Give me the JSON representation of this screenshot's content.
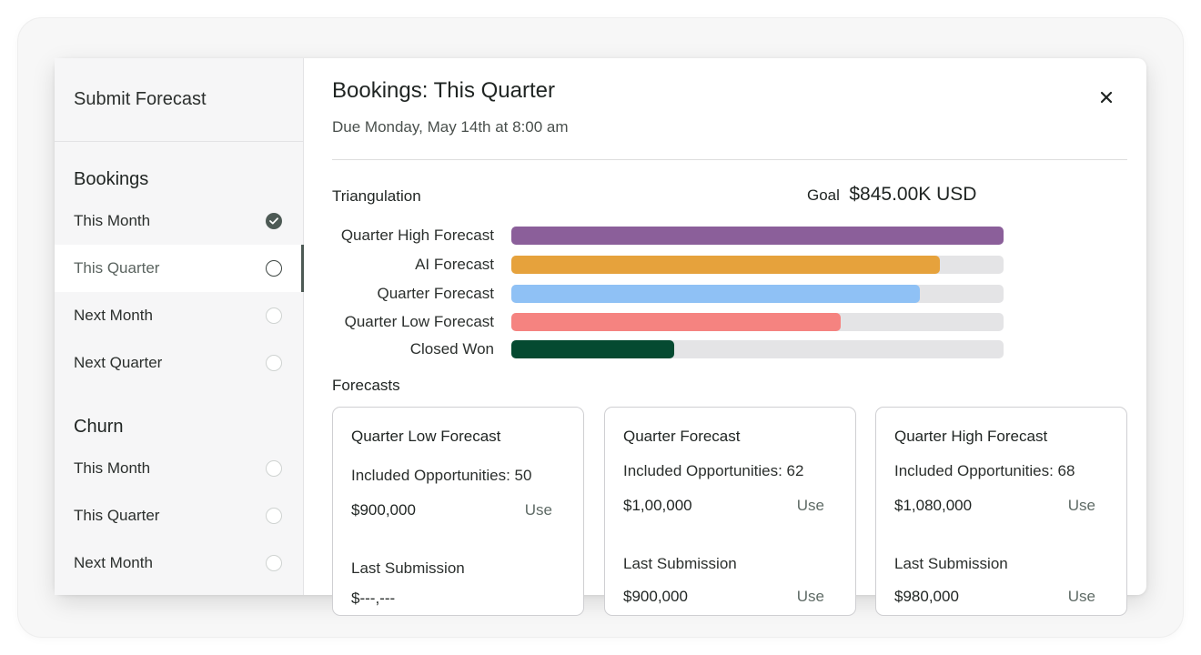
{
  "sidebar": {
    "header": "Submit Forecast",
    "groups": [
      {
        "title": "Bookings",
        "items": [
          {
            "label": "This Month",
            "state": "completed"
          },
          {
            "label": "This Quarter",
            "state": "active"
          },
          {
            "label": "Next Month",
            "state": "pending"
          },
          {
            "label": "Next Quarter",
            "state": "pending"
          }
        ]
      },
      {
        "title": "Churn",
        "items": [
          {
            "label": "This Month",
            "state": "pending"
          },
          {
            "label": "This Quarter",
            "state": "pending"
          },
          {
            "label": "Next Month",
            "state": "pending"
          }
        ]
      }
    ]
  },
  "main": {
    "title": "Bookings: This Quarter",
    "due": "Due Monday, May 14th at 8:00 am",
    "close_icon": "close-icon",
    "triangulation": {
      "label": "Triangulation",
      "goal_label": "Goal",
      "goal_value": "$845.00K USD",
      "bars": [
        {
          "label": "Quarter High Forecast",
          "fraction": 1.0,
          "color": "#8b5f9a"
        },
        {
          "label": "AI Forecast",
          "fraction": 0.87,
          "color": "#e6a23c"
        },
        {
          "label": "Quarter Forecast",
          "fraction": 0.83,
          "color": "#8fc1f5"
        },
        {
          "label": "Quarter Low Forecast",
          "fraction": 0.67,
          "color": "#f58380"
        },
        {
          "label": "Closed Won",
          "fraction": 0.33,
          "color": "#054a31"
        }
      ],
      "track_color": "#e4e4e6"
    },
    "forecasts": {
      "label": "Forecasts",
      "cards": [
        {
          "title": "Quarter Low Forecast",
          "opportunities": "Included Opportunities: 50",
          "amount": "$900,000",
          "use_label": "Use",
          "last_submission_label": "Last Submission",
          "last_amount": "$---,---",
          "last_use_label": ""
        },
        {
          "title": "Quarter Forecast",
          "opportunities": "Included Opportunities: 62",
          "amount": "$1,00,000",
          "use_label": "Use",
          "last_submission_label": "Last Submission",
          "last_amount": "$900,000",
          "last_use_label": "Use"
        },
        {
          "title": "Quarter High Forecast",
          "opportunities": "Included Opportunities: 68",
          "amount": "$1,080,000",
          "use_label": "Use",
          "last_submission_label": "Last Submission",
          "last_amount": "$980,000",
          "last_use_label": "Use"
        }
      ]
    }
  },
  "colors": {
    "accent": "#4d5a55",
    "background": "#f7f7f7",
    "sidebar": "#f6f6f7"
  }
}
